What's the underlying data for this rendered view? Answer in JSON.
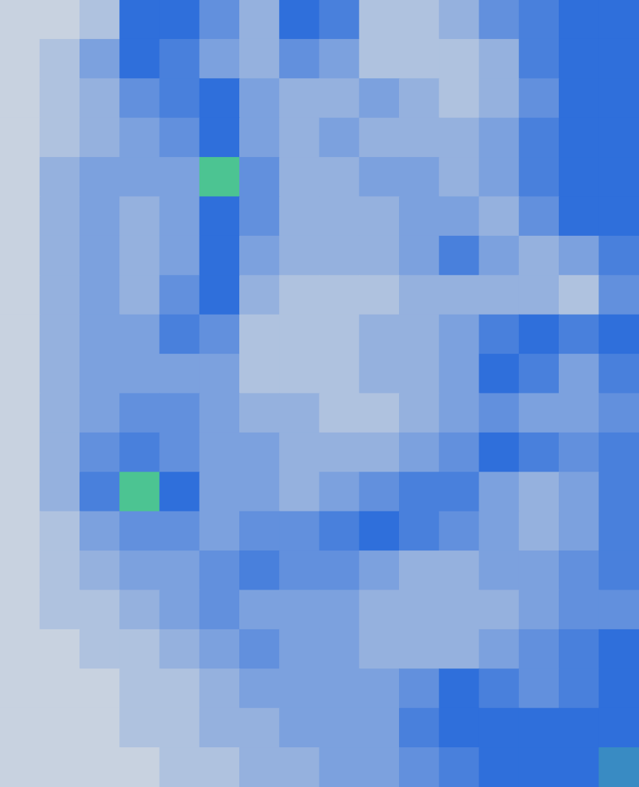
{
  "chart_data": {
    "type": "heatmap",
    "tick_labels": false,
    "colors": [
      "#c8d2e0",
      "#2f6fdb",
      "#55e07a"
    ],
    "color_domain": [
      0,
      6,
      10
    ],
    "cells": [
      [
        0,
        0,
        1,
        6,
        6,
        4,
        2,
        6,
        5,
        1,
        1,
        2,
        4,
        5,
        6,
        6
      ],
      [
        0,
        1,
        3,
        6,
        5,
        3,
        2,
        4,
        3,
        1,
        1,
        1,
        2,
        5,
        6,
        6
      ],
      [
        0,
        1,
        2,
        4,
        5,
        6,
        3,
        2,
        2,
        3,
        2,
        1,
        2,
        4,
        6,
        6
      ],
      [
        0,
        1,
        2,
        3,
        4,
        6,
        3,
        2,
        3,
        2,
        2,
        2,
        3,
        5,
        6,
        6
      ],
      [
        0,
        2,
        3,
        3,
        3,
        9,
        4,
        2,
        2,
        3,
        3,
        2,
        3,
        5,
        6,
        6
      ],
      [
        0,
        2,
        3,
        2,
        3,
        6,
        4,
        2,
        2,
        2,
        3,
        3,
        2,
        4,
        6,
        6
      ],
      [
        0,
        2,
        3,
        2,
        3,
        6,
        3,
        2,
        2,
        2,
        3,
        5,
        3,
        2,
        3,
        5
      ],
      [
        0,
        2,
        3,
        2,
        4,
        6,
        2,
        1,
        1,
        1,
        2,
        2,
        2,
        2,
        1,
        4
      ],
      [
        0,
        2,
        3,
        3,
        5,
        4,
        1,
        1,
        1,
        2,
        2,
        3,
        5,
        6,
        5,
        6
      ],
      [
        0,
        2,
        3,
        3,
        3,
        3,
        1,
        1,
        1,
        2,
        2,
        3,
        6,
        5,
        3,
        5
      ],
      [
        0,
        2,
        3,
        4,
        4,
        3,
        2,
        2,
        1,
        1,
        2,
        3,
        4,
        3,
        3,
        4
      ],
      [
        0,
        2,
        4,
        5,
        4,
        3,
        3,
        2,
        2,
        2,
        3,
        4,
        6,
        5,
        4,
        5
      ],
      [
        0,
        2,
        5,
        9,
        6,
        3,
        3,
        2,
        3,
        4,
        5,
        5,
        3,
        2,
        3,
        5
      ],
      [
        0,
        1,
        3,
        4,
        4,
        3,
        4,
        4,
        5,
        6,
        5,
        4,
        3,
        2,
        3,
        5
      ],
      [
        0,
        1,
        2,
        3,
        3,
        4,
        5,
        4,
        4,
        3,
        2,
        2,
        3,
        3,
        4,
        5
      ],
      [
        0,
        1,
        1,
        2,
        3,
        4,
        3,
        3,
        3,
        2,
        2,
        2,
        2,
        3,
        4,
        4
      ],
      [
        0,
        0,
        1,
        1,
        2,
        3,
        4,
        3,
        3,
        2,
        2,
        2,
        3,
        4,
        5,
        6
      ],
      [
        0,
        0,
        0,
        1,
        1,
        2,
        3,
        3,
        3,
        3,
        4,
        6,
        5,
        4,
        5,
        6
      ],
      [
        0,
        0,
        0,
        1,
        1,
        2,
        2,
        3,
        3,
        3,
        5,
        6,
        6,
        6,
        6,
        6
      ],
      [
        0,
        0,
        0,
        0,
        1,
        1,
        2,
        2,
        3,
        3,
        4,
        5,
        6,
        6,
        6,
        7
      ]
    ]
  }
}
